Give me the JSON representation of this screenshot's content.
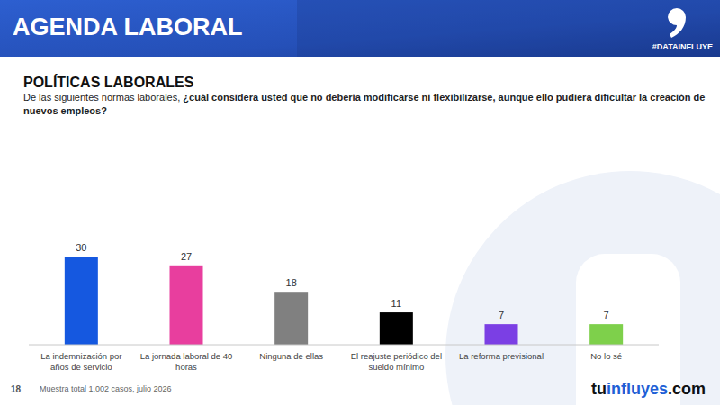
{
  "header": {
    "title": "AGENDA LABORAL",
    "hashtag": "#DATAINFLUYE"
  },
  "chart_data": {
    "type": "bar",
    "title": "POLÍTICAS LABORALES",
    "subtitle": [
      "De las siguientes normas laborales,",
      "¿cuál considera usted que no debería modificarse ni flexibilizarse, aunque ello pudiera dificultar la creación de nuevos empleos?"
    ],
    "categories": [
      "La indemnización por años de servicio",
      "La jornada laboral de 40 horas",
      "Ninguna de ellas",
      "El reajuste periódico del sueldo mínimo",
      "La reforma previsional",
      "No lo sé"
    ],
    "values": [
      30,
      27,
      18,
      11,
      7,
      7
    ],
    "colors": [
      "#1558e0",
      "#e83e9e",
      "#808080",
      "#000000",
      "#7b3fe4",
      "#7ed04b"
    ],
    "ylim": [
      0,
      30
    ],
    "data_labels": true,
    "tick_labels": "x"
  },
  "footer": {
    "page": "18",
    "note": "Muestra total 1.002 casos, julio 2026",
    "brand": "tuinfluyes.com"
  }
}
